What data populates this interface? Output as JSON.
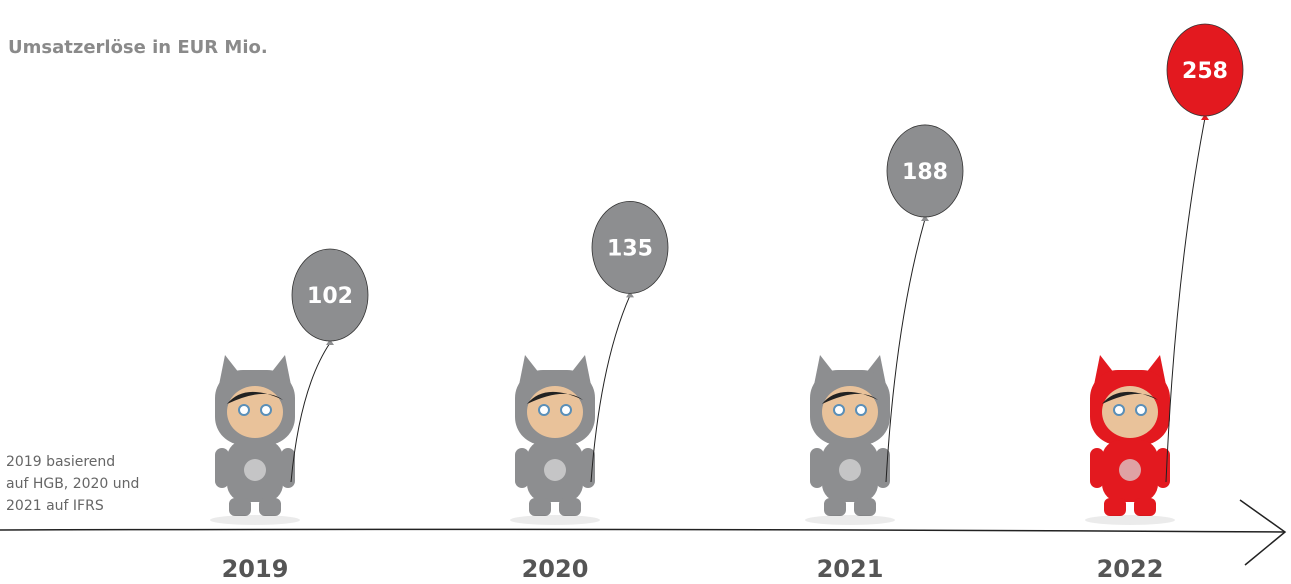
{
  "chart_data": {
    "type": "balloon",
    "title": "Umsatzerlöse in EUR Mio.",
    "note": [
      "2019 basierend",
      "auf HGB, 2020 und",
      "2021 auf IFRS"
    ],
    "categories": [
      "2019",
      "2020",
      "2021",
      "2022"
    ],
    "values": [
      102,
      135,
      188,
      258
    ],
    "colors": [
      "#8d8e90",
      "#8d8e90",
      "#8d8e90",
      "#e3191f"
    ]
  }
}
